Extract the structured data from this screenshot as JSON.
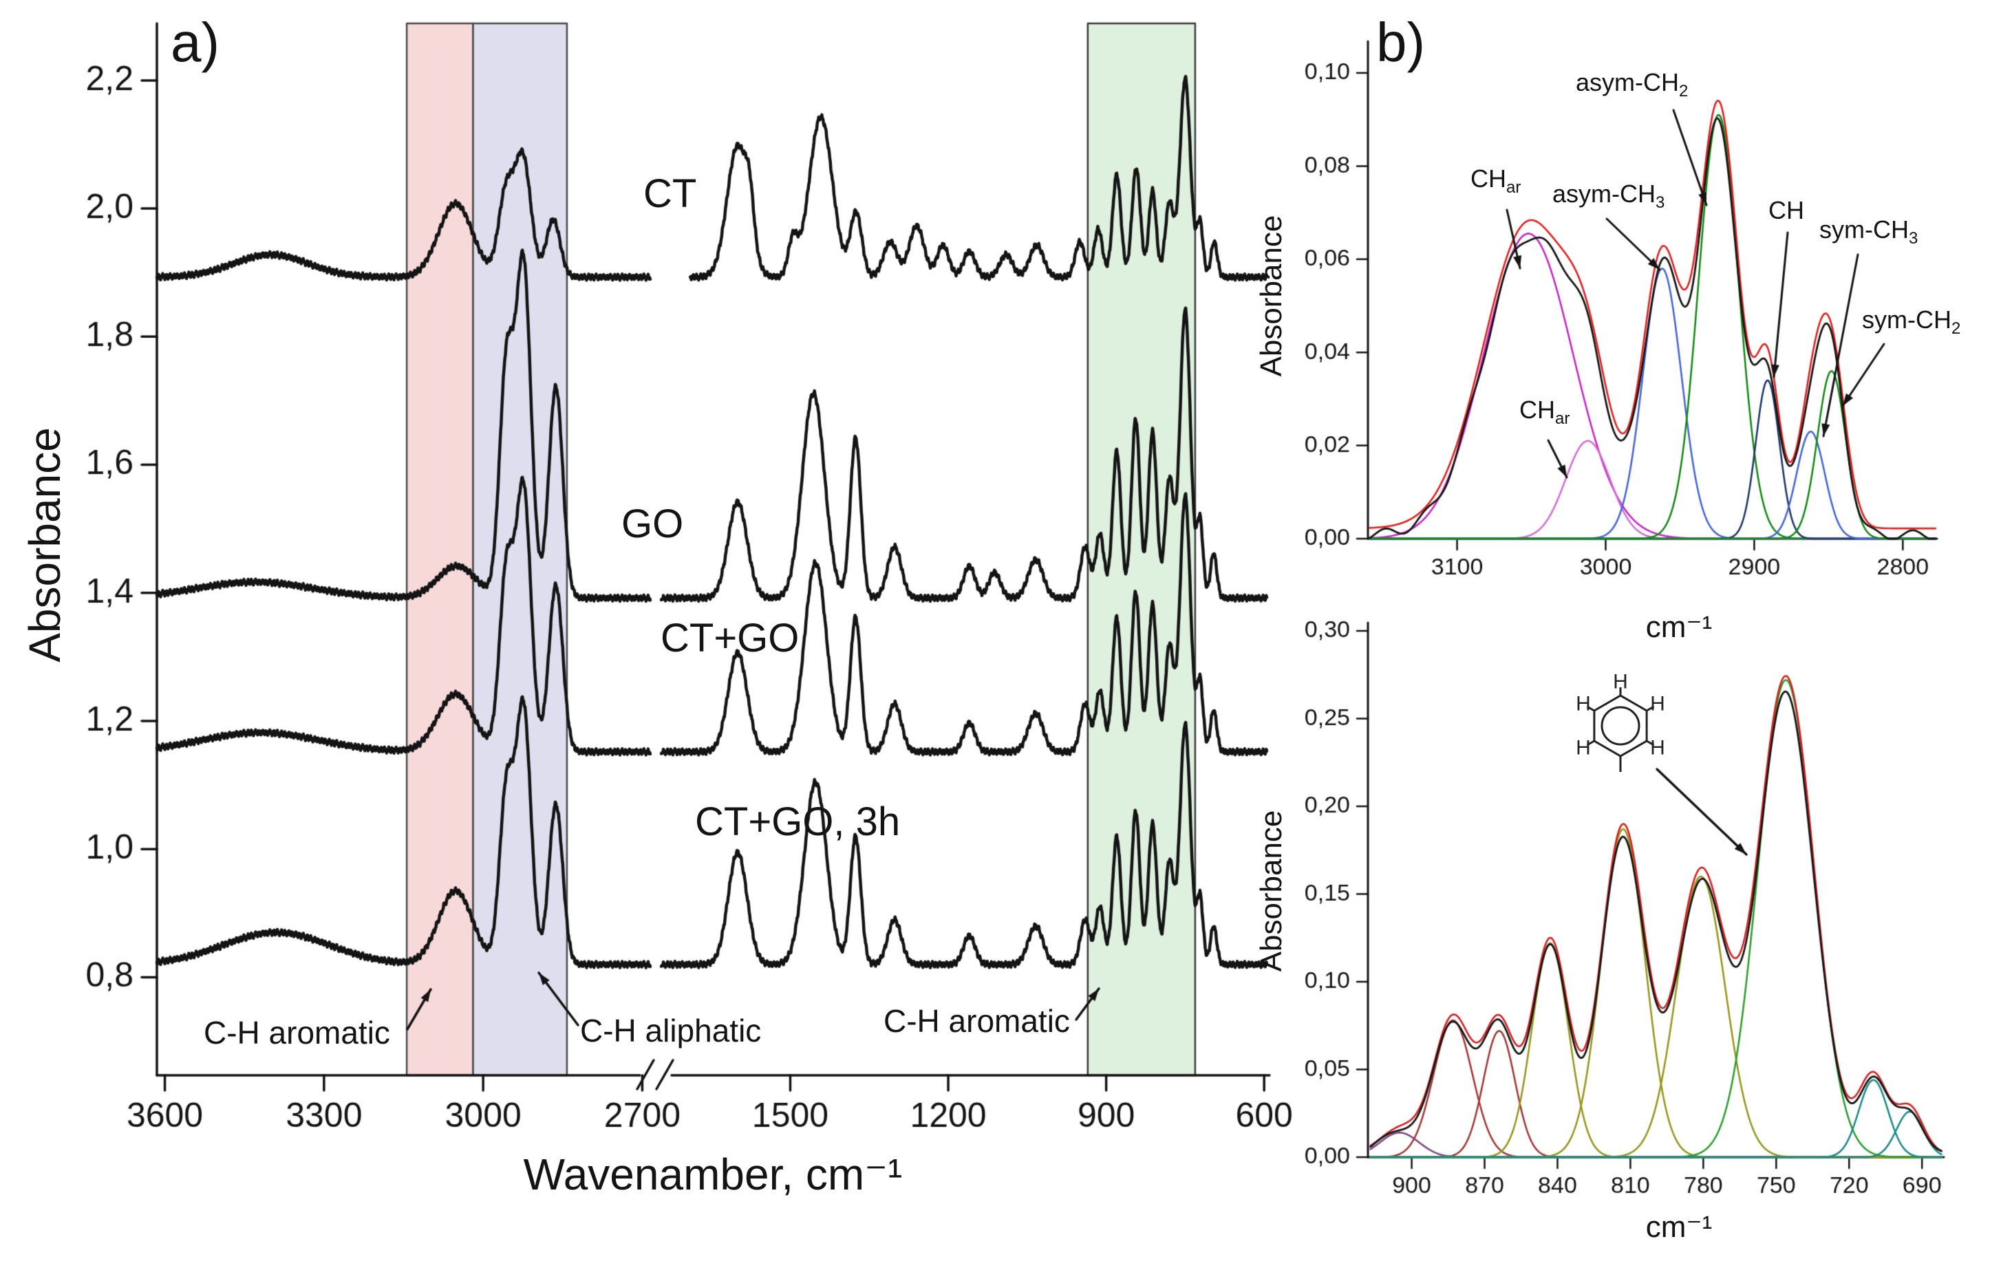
{
  "figure": {
    "background": "#ffffff"
  },
  "chart_data": [
    {
      "id": "panel_a",
      "type": "line",
      "panel_label": "a)",
      "xlabel": "Wavenamber, cm⁻¹",
      "ylabel": "Absorbance",
      "x_axis": {
        "unit": "cm⁻¹",
        "reversed": true,
        "segments": [
          [
            3615,
            2685
          ],
          [
            1745,
            595
          ]
        ],
        "break_between": [
          2685,
          1745
        ],
        "ticks": [
          3600,
          3300,
          3000,
          2700,
          1500,
          1200,
          900,
          600
        ],
        "tick_labels": [
          "3600",
          "3300",
          "3000",
          "2700",
          "1500",
          "1200",
          "900",
          "600"
        ]
      },
      "y_axis": {
        "min": 0.647,
        "max": 2.289,
        "ticks": [
          0.8,
          1.0,
          1.2,
          1.4,
          1.6,
          1.8,
          2.0,
          2.2
        ],
        "tick_labels": [
          "0,8",
          "1,0",
          "1,2",
          "1,4",
          "1,6",
          "1,8",
          "2,0",
          "2,2"
        ]
      },
      "bands": [
        {
          "name": "C-H aromatic",
          "from": 3144,
          "to": 3019,
          "fill": "#f7d9d9",
          "stroke": "#4a4a4a"
        },
        {
          "name": "C-H aliphatic",
          "from": 3019,
          "to": 2842,
          "fill": "#dedeef",
          "stroke": "#4a4a4a"
        },
        {
          "name": "C-H aromatic",
          "from": 935,
          "to": 731,
          "fill": "#def0de",
          "stroke": "#3a3a3a"
        }
      ],
      "annotations": [
        {
          "text": "C-H aromatic"
        },
        {
          "text": "C-H aliphatic"
        },
        {
          "text": "C-H aromatic"
        }
      ],
      "series": [
        {
          "name": "CT",
          "color": "#141414",
          "baseline": 1.893,
          "seg2_from": 1690,
          "peaks": [
            [
              3400,
              0.035,
              70
            ],
            [
              3052,
              0.115,
              32
            ],
            [
              2957,
              0.13,
              14
            ],
            [
              2925,
              0.185,
              15
            ],
            [
              2868,
              0.09,
              13
            ],
            [
              1600,
              0.205,
              20
            ],
            [
              1577,
              0.06,
              8
            ],
            [
              1495,
              0.055,
              9
            ],
            [
              1442,
              0.25,
              22
            ],
            [
              1375,
              0.1,
              11
            ],
            [
              1310,
              0.055,
              13
            ],
            [
              1260,
              0.08,
              14
            ],
            [
              1210,
              0.05,
              11
            ],
            [
              1160,
              0.04,
              11
            ],
            [
              1090,
              0.035,
              12
            ],
            [
              1032,
              0.05,
              13
            ],
            [
              950,
              0.055,
              9
            ],
            [
              915,
              0.075,
              8
            ],
            [
              880,
              0.16,
              8
            ],
            [
              843,
              0.17,
              8
            ],
            [
              812,
              0.135,
              7
            ],
            [
              780,
              0.115,
              8
            ],
            [
              750,
              0.31,
              10
            ],
            [
              722,
              0.085,
              6
            ],
            [
              695,
              0.055,
              6
            ]
          ]
        },
        {
          "name": "GO",
          "color": "#141414",
          "baseline": 1.392,
          "seg2_from": 1745,
          "peaks": [
            [
              3430,
              0.025,
              110
            ],
            [
              3050,
              0.05,
              36
            ],
            [
              2956,
              0.36,
              13
            ],
            [
              2924,
              0.52,
              14
            ],
            [
              2863,
              0.33,
              13
            ],
            [
              1600,
              0.15,
              18
            ],
            [
              1456,
              0.32,
              21
            ],
            [
              1376,
              0.25,
              10
            ],
            [
              1302,
              0.08,
              13
            ],
            [
              1160,
              0.05,
              11
            ],
            [
              1112,
              0.04,
              11
            ],
            [
              1034,
              0.06,
              14
            ],
            [
              940,
              0.08,
              9
            ],
            [
              912,
              0.1,
              8
            ],
            [
              880,
              0.23,
              8
            ],
            [
              844,
              0.28,
              8
            ],
            [
              812,
              0.26,
              8
            ],
            [
              780,
              0.185,
              8
            ],
            [
              750,
              0.45,
              10
            ],
            [
              722,
              0.12,
              6
            ],
            [
              696,
              0.07,
              6
            ]
          ]
        },
        {
          "name": "CT+GO",
          "color": "#141414",
          "baseline": 1.152,
          "seg2_from": 1745,
          "peaks": [
            [
              3420,
              0.03,
              110
            ],
            [
              3052,
              0.09,
              34
            ],
            [
              2956,
              0.28,
              13
            ],
            [
              2924,
              0.41,
              14
            ],
            [
              2863,
              0.26,
              13
            ],
            [
              1600,
              0.155,
              18
            ],
            [
              1452,
              0.295,
              21
            ],
            [
              1376,
              0.21,
              10
            ],
            [
              1302,
              0.075,
              13
            ],
            [
              1160,
              0.045,
              11
            ],
            [
              1034,
              0.06,
              14
            ],
            [
              940,
              0.075,
              9
            ],
            [
              912,
              0.095,
              8
            ],
            [
              880,
              0.21,
              8
            ],
            [
              844,
              0.25,
              8
            ],
            [
              812,
              0.23,
              8
            ],
            [
              780,
              0.165,
              8
            ],
            [
              750,
              0.4,
              10
            ],
            [
              722,
              0.11,
              6
            ],
            [
              696,
              0.065,
              6
            ]
          ]
        },
        {
          "name": "CT+GO, 3h",
          "color": "#141414",
          "baseline": 0.82,
          "seg2_from": 1745,
          "peaks": [
            [
              3390,
              0.05,
              100
            ],
            [
              3052,
              0.115,
              32
            ],
            [
              2956,
              0.27,
              13
            ],
            [
              2924,
              0.4,
              14
            ],
            [
              2863,
              0.25,
              13
            ],
            [
              1600,
              0.175,
              18
            ],
            [
              1452,
              0.285,
              21
            ],
            [
              1376,
              0.2,
              10
            ],
            [
              1302,
              0.07,
              13
            ],
            [
              1160,
              0.045,
              11
            ],
            [
              1034,
              0.06,
              14
            ],
            [
              940,
              0.07,
              9
            ],
            [
              912,
              0.09,
              8
            ],
            [
              880,
              0.2,
              8
            ],
            [
              844,
              0.24,
              8
            ],
            [
              812,
              0.22,
              8
            ],
            [
              780,
              0.16,
              8
            ],
            [
              750,
              0.375,
              10
            ],
            [
              722,
              0.105,
              6
            ],
            [
              696,
              0.06,
              6
            ]
          ]
        }
      ]
    },
    {
      "id": "panel_b_top",
      "type": "line",
      "panel_label": "b)",
      "xlabel": "cm⁻¹",
      "ylabel": "Absorbance",
      "x_axis": {
        "reversed": true,
        "min": 2777,
        "max": 3160,
        "ticks": [
          3100,
          3000,
          2900,
          2800
        ],
        "tick_labels": [
          "3100",
          "3000",
          "2900",
          "2800"
        ]
      },
      "y_axis": {
        "min": 0,
        "max": 0.1068,
        "ticks": [
          0,
          0.02,
          0.04,
          0.06,
          0.08,
          0.1
        ],
        "tick_labels": [
          "0,00",
          "0,02",
          "0,04",
          "0,06",
          "0,08",
          "0,10"
        ]
      },
      "envelope_color": "#e02020",
      "experimental_color": "#151515",
      "peaks": [
        {
          "label_main": "CH",
          "label_sub": "ar",
          "center": 3052,
          "height": 0.0655,
          "width": 30,
          "color": "#c428c4"
        },
        {
          "label_main": "CH",
          "label_sub": "ar",
          "center": 3012,
          "height": 0.021,
          "width": 15,
          "color": "#d36fd3"
        },
        {
          "label_main": "asym-CH",
          "label_sub": "3",
          "center": 2962,
          "height": 0.058,
          "width": 13,
          "color": "#4666d6"
        },
        {
          "label_main": "asym-CH",
          "label_sub": "2",
          "center": 2924,
          "height": 0.091,
          "width": 13.5,
          "color": "#178917"
        },
        {
          "label_main": "CH",
          "label_sub": "",
          "center": 2891,
          "height": 0.034,
          "width": 8,
          "color": "#1f3864"
        },
        {
          "label_main": "sym-CH",
          "label_sub": "3",
          "center": 2862,
          "height": 0.023,
          "width": 9.5,
          "color": "#4666d6"
        },
        {
          "label_main": "sym-CH",
          "label_sub": "2",
          "center": 2848,
          "height": 0.036,
          "width": 9.5,
          "color": "#178917"
        }
      ]
    },
    {
      "id": "panel_b_bottom",
      "type": "line",
      "xlabel": "cm⁻¹",
      "ylabel": "Absorbance",
      "x_axis": {
        "reversed": true,
        "min": 681,
        "max": 918,
        "ticks": [
          900,
          870,
          840,
          810,
          780,
          750,
          720,
          690
        ],
        "tick_labels": [
          "900",
          "870",
          "840",
          "810",
          "780",
          "750",
          "720",
          "690"
        ]
      },
      "y_axis": {
        "min": 0,
        "max": 0.3047,
        "ticks": [
          0,
          0.05,
          0.1,
          0.15,
          0.2,
          0.25,
          0.3
        ],
        "tick_labels": [
          "0,00",
          "0,05",
          "0,10",
          "0,15",
          "0,20",
          "0,25",
          "0,30"
        ]
      },
      "envelope_color": "#d42020",
      "experimental_color": "#151515",
      "molecule": {
        "name": "mono-substituted benzene ring",
        "atom_label": "H"
      },
      "peaks": [
        {
          "center": 905,
          "height": 0.014,
          "width": 8,
          "color": "#7d4b86"
        },
        {
          "center": 883,
          "height": 0.078,
          "width": 8,
          "color": "#a03a3a"
        },
        {
          "center": 864,
          "height": 0.072,
          "width": 6.5,
          "color": "#a03a3a"
        },
        {
          "center": 843,
          "height": 0.122,
          "width": 7.5,
          "color": "#97971f"
        },
        {
          "center": 813,
          "height": 0.187,
          "width": 9,
          "color": "#97971f"
        },
        {
          "center": 781,
          "height": 0.16,
          "width": 10,
          "color": "#97971f"
        },
        {
          "center": 746,
          "height": 0.272,
          "width": 11.5,
          "color": "#2f9e2f"
        },
        {
          "center": 710,
          "height": 0.044,
          "width": 6,
          "color": "#1f8a8a"
        },
        {
          "center": 695,
          "height": 0.026,
          "width": 5.5,
          "color": "#1f8a8a"
        }
      ]
    }
  ]
}
